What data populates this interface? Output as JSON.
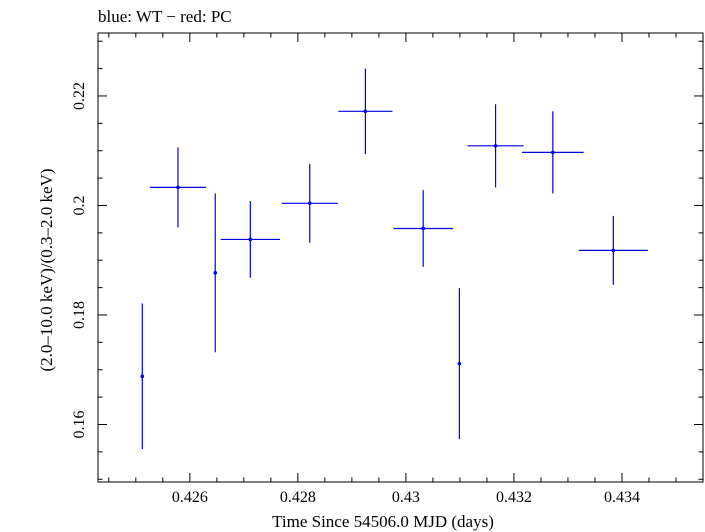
{
  "chart_data": {
    "type": "scatter",
    "title": "blue: WT − red: PC",
    "xlabel": "Time Since 54506.0 MJD (days)",
    "ylabel": "(2.0–10.0 keV)/(0.3–2.0 keV)",
    "xlim": [
      0.4243,
      0.4355
    ],
    "ylim": [
      0.1495,
      0.2315
    ],
    "x_ticks": [
      {
        "value": 0.426,
        "label": "0.426"
      },
      {
        "value": 0.428,
        "label": "0.428"
      },
      {
        "value": 0.43,
        "label": "0.43"
      },
      {
        "value": 0.432,
        "label": "0.432"
      },
      {
        "value": 0.434,
        "label": "0.434"
      }
    ],
    "y_ticks": [
      {
        "value": 0.16,
        "label": "0.16"
      },
      {
        "value": 0.18,
        "label": "0.18"
      },
      {
        "value": 0.2,
        "label": "0.2"
      },
      {
        "value": 0.22,
        "label": "0.22"
      }
    ],
    "grid": false,
    "color": "#0000ee",
    "series": [
      {
        "points": [
          {
            "x": 0.42512,
            "y": 0.1688,
            "xerr": 0.0,
            "yerr": 0.0133
          },
          {
            "x": 0.42578,
            "y": 0.2033,
            "xerr": 0.00052,
            "yerr": 0.0073
          },
          {
            "x": 0.42647,
            "y": 0.1877,
            "xerr": 0.0,
            "yerr": 0.0145
          },
          {
            "x": 0.42712,
            "y": 0.1938,
            "xerr": 0.00055,
            "yerr": 0.007
          },
          {
            "x": 0.42822,
            "y": 0.2004,
            "xerr": 0.00052,
            "yerr": 0.0072
          },
          {
            "x": 0.42925,
            "y": 0.2172,
            "xerr": 0.0005,
            "yerr": 0.0078
          },
          {
            "x": 0.43032,
            "y": 0.1958,
            "xerr": 0.00055,
            "yerr": 0.007
          },
          {
            "x": 0.43099,
            "y": 0.1711,
            "xerr": 0.0,
            "yerr": 0.0138
          },
          {
            "x": 0.43166,
            "y": 0.2109,
            "xerr": 0.00052,
            "yerr": 0.0076
          },
          {
            "x": 0.43272,
            "y": 0.2097,
            "xerr": 0.00057,
            "yerr": 0.0075
          },
          {
            "x": 0.43384,
            "y": 0.1918,
            "xerr": 0.00064,
            "yerr": 0.0063
          }
        ]
      }
    ]
  }
}
